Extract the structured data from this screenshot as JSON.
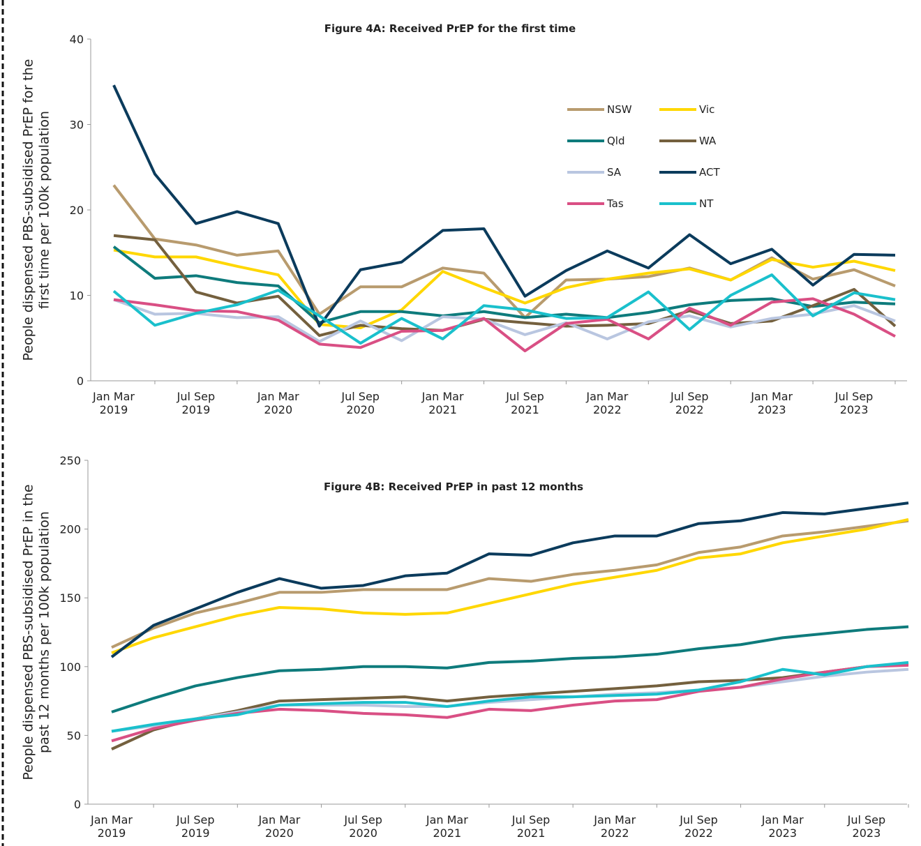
{
  "chart_data": [
    {
      "type": "line",
      "title": "Figure 4A: Received PrEP for the first time",
      "y_label": "People  dispensed PBS-subsidised PrEP for the\nfirst time per 100k population",
      "categories": [
        "Jan Mar\n2019",
        null,
        "Jul Sep\n2019",
        null,
        "Jan Mar\n2020",
        null,
        "Jul Sep\n2020",
        null,
        "Jan Mar\n2021",
        null,
        "Jul Sep\n2021",
        null,
        "Jan Mar\n2022",
        null,
        "Jul Sep\n2022",
        null,
        "Jan Mar\n2023",
        null,
        "Jul Sep\n2023",
        null
      ],
      "ylim": [
        0,
        40
      ],
      "yticks": [
        0,
        10,
        20,
        30,
        40
      ],
      "legend": true,
      "series": [
        {
          "name": "NSW",
          "color": "#b89b6e",
          "values": [
            22.9,
            16.6,
            15.9,
            14.7,
            15.2,
            7.8,
            11.0,
            11.0,
            13.2,
            12.6,
            7.4,
            11.8,
            11.9,
            12.2,
            13.2,
            11.8,
            14.4,
            11.9,
            13.0,
            11.1
          ]
        },
        {
          "name": "Vic",
          "color": "#ffd700",
          "values": [
            15.3,
            14.5,
            14.5,
            13.4,
            12.4,
            6.6,
            6.2,
            8.3,
            12.8,
            10.9,
            9.1,
            10.9,
            11.9,
            12.6,
            13.1,
            11.8,
            14.2,
            13.3,
            14.0,
            12.9
          ]
        },
        {
          "name": "Qld",
          "color": "#0e7b7c",
          "values": [
            15.7,
            12.0,
            12.3,
            11.5,
            11.1,
            6.8,
            8.1,
            8.1,
            7.6,
            8.1,
            7.4,
            7.8,
            7.4,
            8.0,
            8.9,
            9.4,
            9.6,
            8.7,
            9.2,
            9.0
          ]
        },
        {
          "name": "WA",
          "color": "#74603e",
          "values": [
            17.0,
            16.5,
            10.4,
            9.1,
            9.9,
            5.3,
            6.5,
            6.1,
            5.9,
            7.2,
            6.8,
            6.4,
            6.5,
            6.7,
            8.2,
            6.7,
            7.0,
            8.8,
            10.7,
            6.4
          ]
        },
        {
          "name": "SA",
          "color": "#b9c6e0",
          "values": [
            9.5,
            7.8,
            7.9,
            7.4,
            7.5,
            4.6,
            7.0,
            4.7,
            7.5,
            7.2,
            5.4,
            6.8,
            4.9,
            6.9,
            7.6,
            6.3,
            7.3,
            7.8,
            8.8,
            7.0
          ]
        },
        {
          "name": "ACT",
          "color": "#0b3b5c",
          "values": [
            34.6,
            24.2,
            18.4,
            19.8,
            18.4,
            6.4,
            13.0,
            13.9,
            17.6,
            17.8,
            9.9,
            12.9,
            15.2,
            13.2,
            17.1,
            13.7,
            15.4,
            11.2,
            14.8,
            14.7
          ]
        },
        {
          "name": "Tas",
          "color": "#d94f84",
          "values": [
            9.5,
            8.9,
            8.2,
            8.1,
            7.1,
            4.3,
            3.9,
            5.8,
            5.9,
            7.3,
            3.5,
            6.7,
            7.2,
            4.9,
            8.5,
            6.5,
            9.2,
            9.6,
            7.8,
            5.2
          ]
        },
        {
          "name": "NT",
          "color": "#1ac0cc",
          "values": [
            10.5,
            6.5,
            7.9,
            8.9,
            10.6,
            7.6,
            4.4,
            7.3,
            4.9,
            8.8,
            8.3,
            7.3,
            7.4,
            10.4,
            6.0,
            10.0,
            12.4,
            7.6,
            10.3,
            9.5
          ]
        }
      ]
    },
    {
      "type": "line",
      "title": "Figure 4B: Received PrEP in past 12 months",
      "y_label": "People dispensed PBS-subsidised PrEP in the\npast 12 months per 100k population",
      "categories": [
        "Jan Mar\n2019",
        null,
        "Jul Sep\n2019",
        null,
        "Jan Mar\n2020",
        null,
        "Jul Sep\n2020",
        null,
        "Jan Mar\n2021",
        null,
        "Jul Sep\n2021",
        null,
        "Jan Mar\n2022",
        null,
        "Jul Sep\n2022",
        null,
        "Jan Mar\n2023",
        null,
        "Jul Sep\n2023",
        null
      ],
      "ylim": [
        0,
        250
      ],
      "yticks": [
        0,
        50,
        100,
        150,
        200,
        250
      ],
      "legend": false,
      "series": [
        {
          "color": "#b89b6e",
          "values": [
            114,
            128,
            139,
            146,
            154,
            154,
            156,
            156,
            156,
            164,
            162,
            167,
            170,
            174,
            183,
            187,
            195,
            198,
            202,
            206
          ]
        },
        {
          "color": "#ffd700",
          "values": [
            110,
            121,
            129,
            137,
            143,
            142,
            139,
            138,
            139,
            146,
            153,
            160,
            165,
            170,
            179,
            182,
            190,
            195,
            200,
            207
          ]
        },
        {
          "color": "#0e7b7c",
          "values": [
            67,
            77,
            86,
            92,
            97,
            98,
            100,
            100,
            99,
            103,
            104,
            106,
            107,
            109,
            113,
            116,
            121,
            124,
            127,
            129
          ]
        },
        {
          "color": "#74603e",
          "values": [
            40,
            54,
            62,
            68,
            75,
            76,
            77,
            78,
            75,
            78,
            80,
            82,
            84,
            86,
            89,
            90,
            92,
            96,
            100,
            102
          ]
        },
        {
          "color": "#b9c6e0",
          "values": [
            53,
            57,
            62,
            67,
            72,
            72,
            72,
            71,
            71,
            74,
            76,
            78,
            80,
            81,
            83,
            85,
            89,
            93,
            96,
            98
          ]
        },
        {
          "color": "#0b3b5c",
          "values": [
            107,
            130,
            142,
            154,
            164,
            157,
            159,
            166,
            168,
            182,
            181,
            190,
            195,
            195,
            204,
            206,
            212,
            211,
            215,
            219
          ]
        },
        {
          "color": "#d94f84",
          "values": [
            46,
            55,
            61,
            66,
            69,
            68,
            66,
            65,
            63,
            69,
            68,
            72,
            75,
            76,
            82,
            85,
            91,
            96,
            100,
            101
          ]
        },
        {
          "color": "#1ac0cc",
          "values": [
            53,
            58,
            62,
            65,
            72,
            73,
            74,
            74,
            71,
            75,
            78,
            78,
            79,
            80,
            83,
            89,
            98,
            94,
            100,
            103
          ]
        }
      ]
    }
  ]
}
